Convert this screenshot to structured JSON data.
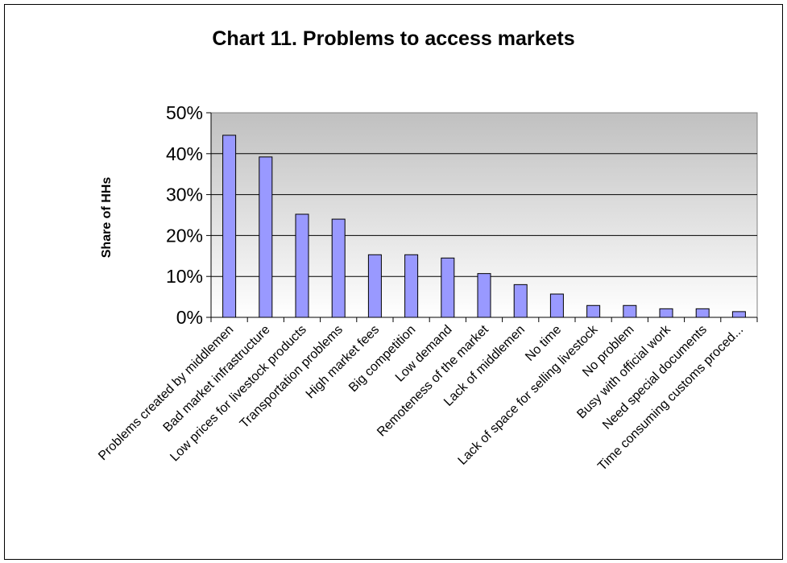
{
  "chart_data": {
    "type": "bar",
    "title": "Chart 11. Problems to access markets",
    "xlabel": "",
    "ylabel": "Share of HHs",
    "ylim": [
      0,
      0.5
    ],
    "yticks": [
      "0%",
      "10%",
      "20%",
      "30%",
      "40%",
      "50%"
    ],
    "grid": true,
    "legend": "none",
    "categories": [
      "Problems created by middlemen",
      "Bad market infrastructure",
      "Low prices for livestock products",
      "Transportation problems",
      "High market fees",
      "Big competition",
      "Low demand",
      "Remoteness of the market",
      "Lack of middlemen",
      "No time",
      "Lack of space for selling livestock",
      "No problem",
      "Busy with official work",
      "Need special documents",
      "Time consuming customs proced..."
    ],
    "values": [
      0.445,
      0.392,
      0.252,
      0.24,
      0.153,
      0.153,
      0.145,
      0.107,
      0.08,
      0.057,
      0.029,
      0.029,
      0.021,
      0.021,
      0.014
    ],
    "colors": {
      "bar_fill": "#9999ff",
      "bar_stroke": "#000000",
      "plot_bg_top": "#c0c0c0",
      "plot_bg_bottom": "#ffffff"
    }
  }
}
